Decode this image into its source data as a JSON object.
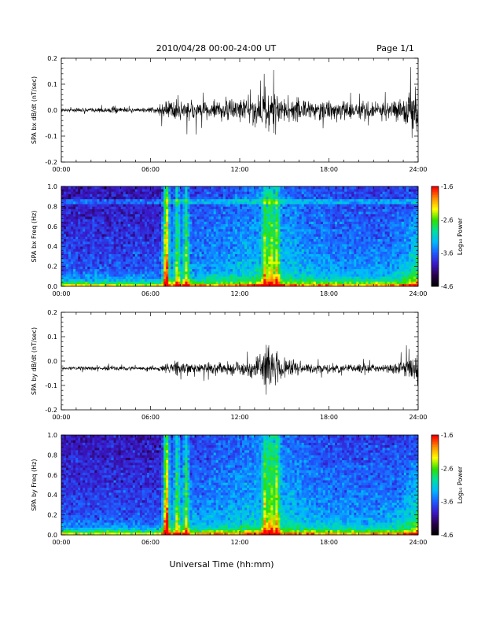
{
  "header": {
    "title": "2010/04/28  00:00-24:00 UT",
    "page": "Page 1/1"
  },
  "footer": {
    "xlabel": "Universal Time (hh:mm)"
  },
  "colors": {
    "trace": "#000000",
    "colormap": [
      "#000000",
      "#2a0050",
      "#3a18c8",
      "#1e5cff",
      "#00b8ff",
      "#00e0a0",
      "#30e000",
      "#ffff00",
      "#ff9000",
      "#ff0000"
    ]
  },
  "chart_data": [
    {
      "type": "line",
      "ylabel": "SPA bx dB/dt (nT/sec)",
      "x_unit": "hours UT",
      "xlim": [
        0,
        24
      ],
      "ylim": [
        -0.2,
        0.2
      ],
      "xticks": [
        "00:00",
        "06:00",
        "12:00",
        "18:00",
        "24:00"
      ],
      "yticks": [
        "-0.2",
        "-0.1",
        "0.0",
        "0.1",
        "0.2"
      ],
      "baseline": 0.0,
      "envelope": {
        "x": [
          0,
          2,
          3.5,
          5,
          6.5,
          7,
          8,
          9,
          10,
          11,
          12,
          13,
          14,
          15,
          16,
          17,
          18,
          19,
          20,
          21,
          22,
          23,
          23.5,
          24
        ],
        "amplitude": [
          0.015,
          0.02,
          0.03,
          0.015,
          0.03,
          0.1,
          0.11,
          0.1,
          0.07,
          0.09,
          0.09,
          0.12,
          0.2,
          0.11,
          0.09,
          0.09,
          0.08,
          0.07,
          0.07,
          0.07,
          0.08,
          0.1,
          0.18,
          0.2
        ]
      }
    },
    {
      "type": "heatmap",
      "ylabel": "SPA bx Freq (Hz)",
      "x_unit": "hours UT",
      "xlim": [
        0,
        24
      ],
      "ylim": [
        0.0,
        1.0
      ],
      "xticks": [
        "00:00",
        "06:00",
        "12:00",
        "18:00",
        "24:00"
      ],
      "yticks": [
        "0.0",
        "0.2",
        "0.4",
        "0.6",
        "0.8",
        "1.0"
      ],
      "colorbar": {
        "label": "Log₁₀ Power",
        "range": [
          -4.6,
          -1.6
        ],
        "ticks": [
          "-1.6",
          "-2.6",
          "-3.6",
          "-4.6"
        ]
      },
      "bright_columns_hr": [
        7.0,
        7.1,
        7.8,
        8.4,
        13.7,
        14.1,
        14.5
      ],
      "narrowband_line_hz": 0.85
    },
    {
      "type": "line",
      "ylabel": "SPA by dB/dt (nT/sec)",
      "x_unit": "hours UT",
      "xlim": [
        0,
        24
      ],
      "ylim": [
        -0.2,
        0.2
      ],
      "xticks": [
        "00:00",
        "06:00",
        "12:00",
        "18:00",
        "24:00"
      ],
      "yticks": [
        "-0.2",
        "-0.1",
        "0.0",
        "0.1",
        "0.2"
      ],
      "baseline": -0.03,
      "envelope": {
        "x": [
          0,
          2,
          3.5,
          5,
          6.5,
          7,
          8,
          9,
          10,
          11,
          12,
          13,
          14,
          15,
          16,
          17,
          18,
          19,
          20,
          21,
          22,
          23,
          23.5,
          24
        ],
        "amplitude": [
          0.01,
          0.02,
          0.02,
          0.015,
          0.02,
          0.05,
          0.07,
          0.04,
          0.06,
          0.05,
          0.06,
          0.1,
          0.2,
          0.1,
          0.06,
          0.05,
          0.05,
          0.04,
          0.04,
          0.04,
          0.05,
          0.07,
          0.14,
          0.15
        ]
      }
    },
    {
      "type": "heatmap",
      "ylabel": "SPA by Freq (Hz)",
      "x_unit": "hours UT",
      "xlim": [
        0,
        24
      ],
      "ylim": [
        0.0,
        1.0
      ],
      "xticks": [
        "00:00",
        "06:00",
        "12:00",
        "18:00",
        "24:00"
      ],
      "yticks": [
        "0.0",
        "0.2",
        "0.4",
        "0.6",
        "0.8",
        "1.0"
      ],
      "colorbar": {
        "label": "Log₁₀ Power",
        "range": [
          -4.6,
          -1.6
        ],
        "ticks": [
          "-1.6",
          "-2.6",
          "-3.6",
          "-4.6"
        ]
      },
      "bright_columns_hr": [
        7.0,
        7.1,
        7.8,
        8.4,
        13.7,
        14.1,
        14.5
      ],
      "narrowband_line_hz": null
    }
  ]
}
